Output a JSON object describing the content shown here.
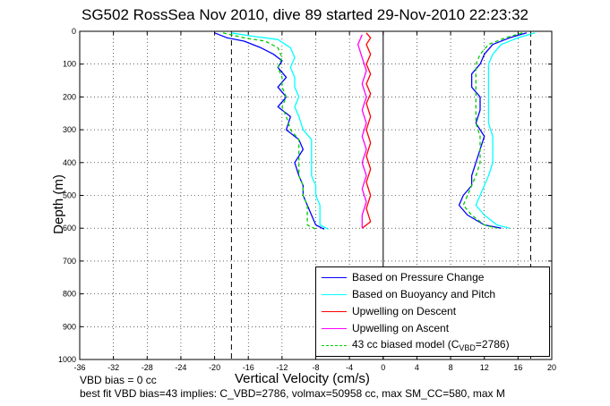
{
  "title": "SG502 RossSea Nov 2010, dive 89 started 29-Nov-2010 22:23:32",
  "xlabel": "Vertical Velocity (cm/s)",
  "ylabel": "Depth (m)",
  "notes": {
    "line1": "VBD bias = 0 cc",
    "line2": "best fit VBD bias=43 implies: C_VBD=2786, volmax=50958 cc, max SM_CC=580, max M"
  },
  "legend": {
    "items": [
      {
        "label": "Based on Pressure Change",
        "color": "#0000ff",
        "style": "solid"
      },
      {
        "label": "Based on Buoyancy and Pitch",
        "color": "#00ffff",
        "style": "solid"
      },
      {
        "label": "Upwelling on Descent",
        "color": "#ff0000",
        "style": "solid"
      },
      {
        "label": "Upwelling on Ascent",
        "color": "#ff00ff",
        "style": "solid"
      },
      {
        "label_prefix": "43 cc biased model (C",
        "label_sub": "VBD",
        "label_suffix": "=2786)",
        "color": "#00cc00",
        "style": "dashed"
      }
    ]
  },
  "chart_data": {
    "type": "line",
    "title": "SG502 RossSea Nov 2010, dive 89 started 29-Nov-2010 22:23:32",
    "xlabel": "Vertical Velocity (cm/s)",
    "ylabel": "Depth (m)",
    "xlim": [
      -36,
      20
    ],
    "ylim": [
      0,
      1000
    ],
    "y_reversed": true,
    "grid": true,
    "legend_position": "bottom-right",
    "xticks": [
      -36,
      -32,
      -28,
      -24,
      -20,
      -16,
      -12,
      -8,
      -4,
      0,
      4,
      8,
      12,
      16,
      20
    ],
    "yticks": [
      0,
      100,
      200,
      300,
      400,
      500,
      600,
      700,
      800,
      900,
      1000
    ],
    "reference_lines": {
      "vertical_solid": [
        0
      ],
      "vertical_dashed": [
        -18,
        17.5
      ]
    },
    "series": [
      {
        "name": "Based on Pressure Change",
        "color": "#0000ff",
        "style": "solid",
        "segments": [
          [
            [
              -20,
              5
            ],
            [
              -18.5,
              20
            ],
            [
              -16.5,
              30
            ],
            [
              -14.5,
              50
            ],
            [
              -13,
              70
            ],
            [
              -12,
              90
            ],
            [
              -12.5,
              110
            ],
            [
              -11.5,
              140
            ],
            [
              -12.5,
              170
            ],
            [
              -11.5,
              200
            ],
            [
              -12.5,
              230
            ],
            [
              -11,
              260
            ],
            [
              -11.5,
              300
            ],
            [
              -10,
              330
            ],
            [
              -9.5,
              360
            ],
            [
              -10.5,
              400
            ],
            [
              -10,
              440
            ],
            [
              -9.5,
              470
            ],
            [
              -9.5,
              500
            ],
            [
              -9,
              530
            ],
            [
              -8.5,
              560
            ],
            [
              -8,
              590
            ],
            [
              -7,
              603
            ]
          ],
          [
            [
              17,
              5
            ],
            [
              15,
              20
            ],
            [
              13,
              40
            ],
            [
              12,
              70
            ],
            [
              11.5,
              100
            ],
            [
              10.5,
              130
            ],
            [
              10.5,
              170
            ],
            [
              11.5,
              200
            ],
            [
              11.5,
              240
            ],
            [
              11,
              280
            ],
            [
              12,
              320
            ],
            [
              11.5,
              360
            ],
            [
              11,
              400
            ],
            [
              10.5,
              440
            ],
            [
              10.5,
              470
            ],
            [
              9.5,
              500
            ],
            [
              9,
              530
            ],
            [
              10,
              560
            ],
            [
              12,
              590
            ],
            [
              14,
              600
            ]
          ]
        ]
      },
      {
        "name": "Based on Buoyancy and Pitch",
        "color": "#00ffff",
        "style": "solid",
        "segments": [
          [
            [
              -18,
              5
            ],
            [
              -15.5,
              15
            ],
            [
              -12.5,
              25
            ],
            [
              -11,
              50
            ],
            [
              -10.5,
              80
            ],
            [
              -11,
              110
            ],
            [
              -10.5,
              140
            ],
            [
              -10.5,
              170
            ],
            [
              -10,
              200
            ],
            [
              -10.5,
              230
            ],
            [
              -10,
              260
            ],
            [
              -9.5,
              300
            ],
            [
              -8.5,
              330
            ],
            [
              -8.5,
              360
            ],
            [
              -8.5,
              400
            ],
            [
              -8.5,
              440
            ],
            [
              -8,
              470
            ],
            [
              -8,
              500
            ],
            [
              -7.5,
              530
            ],
            [
              -7.5,
              560
            ],
            [
              -7.5,
              590
            ],
            [
              -6.5,
              603
            ]
          ],
          [
            [
              18,
              5
            ],
            [
              16,
              20
            ],
            [
              14,
              40
            ],
            [
              13,
              70
            ],
            [
              12.5,
              100
            ],
            [
              12.5,
              130
            ],
            [
              12.5,
              170
            ],
            [
              12.5,
              200
            ],
            [
              12.5,
              240
            ],
            [
              12.5,
              280
            ],
            [
              13,
              320
            ],
            [
              13,
              360
            ],
            [
              13,
              400
            ],
            [
              12.5,
              440
            ],
            [
              12,
              470
            ],
            [
              11.5,
              500
            ],
            [
              11,
              530
            ],
            [
              12,
              560
            ],
            [
              13.5,
              590
            ],
            [
              15,
              600
            ]
          ]
        ]
      },
      {
        "name": "Upwelling on Descent",
        "color": "#ff0000",
        "style": "solid",
        "segments": [
          [
            [
              -2,
              5
            ],
            [
              -1.5,
              20
            ],
            [
              -2,
              40
            ],
            [
              -1.5,
              70
            ],
            [
              -2,
              100
            ],
            [
              -1.5,
              130
            ],
            [
              -2,
              160
            ],
            [
              -1.5,
              190
            ],
            [
              -2,
              220
            ],
            [
              -1.5,
              260
            ],
            [
              -2,
              300
            ],
            [
              -1.5,
              340
            ],
            [
              -2,
              380
            ],
            [
              -1.5,
              420
            ],
            [
              -2,
              460
            ],
            [
              -1.5,
              500
            ],
            [
              -2,
              540
            ],
            [
              -1.5,
              580
            ],
            [
              -2.5,
              600
            ]
          ]
        ]
      },
      {
        "name": "Upwelling on Ascent",
        "color": "#ff00ff",
        "style": "solid",
        "segments": [
          [
            [
              -2.5,
              600
            ],
            [
              -2.5,
              560
            ],
            [
              -2,
              520
            ],
            [
              -2.5,
              480
            ],
            [
              -2,
              440
            ],
            [
              -2.5,
              400
            ],
            [
              -2,
              360
            ],
            [
              -2.5,
              320
            ],
            [
              -2,
              280
            ],
            [
              -2.5,
              240
            ],
            [
              -2,
              200
            ],
            [
              -2.5,
              160
            ],
            [
              -2,
              120
            ],
            [
              -2.5,
              80
            ],
            [
              -3,
              40
            ],
            [
              -2.5,
              10
            ]
          ]
        ]
      },
      {
        "name": "43 cc biased model (CVBD=2786)",
        "color": "#00cc00",
        "style": "dashed",
        "segments": [
          [
            [
              -19,
              5
            ],
            [
              -16.5,
              20
            ],
            [
              -14,
              30
            ],
            [
              -12.5,
              50
            ],
            [
              -12,
              80
            ],
            [
              -12.5,
              110
            ],
            [
              -12,
              140
            ],
            [
              -12,
              170
            ],
            [
              -11.5,
              200
            ],
            [
              -12,
              230
            ],
            [
              -11.5,
              260
            ],
            [
              -11,
              300
            ],
            [
              -10,
              330
            ],
            [
              -10,
              360
            ],
            [
              -10,
              400
            ],
            [
              -10,
              440
            ],
            [
              -9.5,
              470
            ],
            [
              -9.5,
              500
            ],
            [
              -9,
              530
            ],
            [
              -9,
              560
            ],
            [
              -9,
              590
            ],
            [
              -8,
              603
            ]
          ],
          [
            [
              16.5,
              5
            ],
            [
              14.5,
              20
            ],
            [
              12.5,
              40
            ],
            [
              11.5,
              70
            ],
            [
              11,
              100
            ],
            [
              11,
              130
            ],
            [
              11,
              170
            ],
            [
              11,
              200
            ],
            [
              11,
              240
            ],
            [
              11,
              280
            ],
            [
              11.5,
              320
            ],
            [
              11.5,
              360
            ],
            [
              11.5,
              400
            ],
            [
              11,
              440
            ],
            [
              10.5,
              470
            ],
            [
              10,
              500
            ],
            [
              9.5,
              530
            ],
            [
              10.5,
              560
            ],
            [
              12,
              590
            ],
            [
              13.5,
              600
            ]
          ]
        ]
      }
    ]
  }
}
